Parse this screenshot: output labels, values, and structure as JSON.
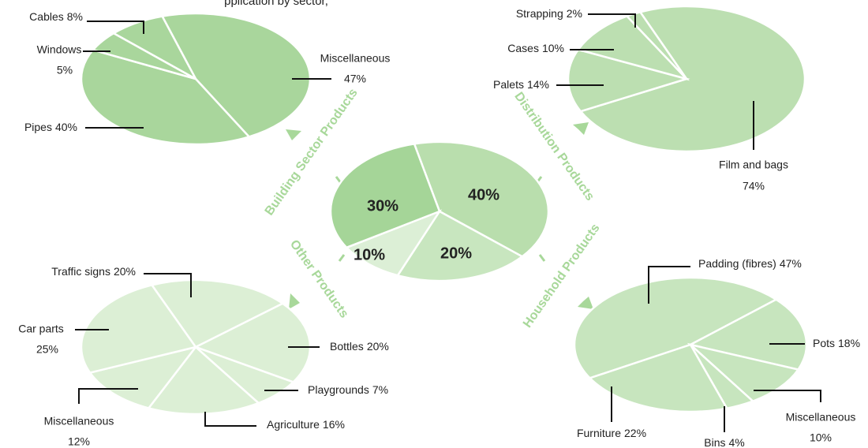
{
  "title": "pplication by sector,",
  "chart_data": [
    {
      "type": "pie",
      "categories": [
        "Distribution Products",
        "Household Products",
        "Other Products",
        "Building Sector Products"
      ],
      "values": [
        40,
        20,
        10,
        30
      ],
      "value_labels": [
        "40%",
        "20%",
        "10%",
        "30%"
      ],
      "colors": [
        "#b9dead",
        "#c8e6bf",
        "#dcefd6",
        "#a5d598"
      ]
    },
    {
      "type": "pie",
      "categories": [
        "Miscellaneous",
        "Pipes",
        "Windows",
        "Cables"
      ],
      "values": [
        47,
        40,
        5,
        8
      ],
      "value_labels": [
        "47%",
        "40%",
        "5%",
        "8%"
      ],
      "color": "#a9d69c"
    },
    {
      "type": "pie",
      "categories": [
        "Film and bags",
        "Palets",
        "Cases",
        "Strapping"
      ],
      "values": [
        74,
        14,
        10,
        2
      ],
      "value_labels": [
        "74%",
        "14%",
        "10%",
        "2%"
      ],
      "color": "#bcdfb1"
    },
    {
      "type": "pie",
      "categories": [
        "Traffic signs",
        "Bottles",
        "Playgrounds",
        "Agriculture",
        "Miscellaneous",
        "Car parts"
      ],
      "values": [
        20,
        20,
        7,
        16,
        12,
        25
      ],
      "value_labels": [
        "20%",
        "20%",
        "7%",
        "16%",
        "12%",
        "25%"
      ],
      "color": "#dcefd5"
    },
    {
      "type": "pie",
      "categories": [
        "Padding (fibres)",
        "Pots",
        "Miscellaneous",
        "Bins",
        "Furniture"
      ],
      "values": [
        47,
        18,
        10,
        4,
        22
      ],
      "value_labels": [
        "47%",
        "18%",
        "10%",
        "4%",
        "22%"
      ],
      "color": "#c7e5be"
    }
  ]
}
